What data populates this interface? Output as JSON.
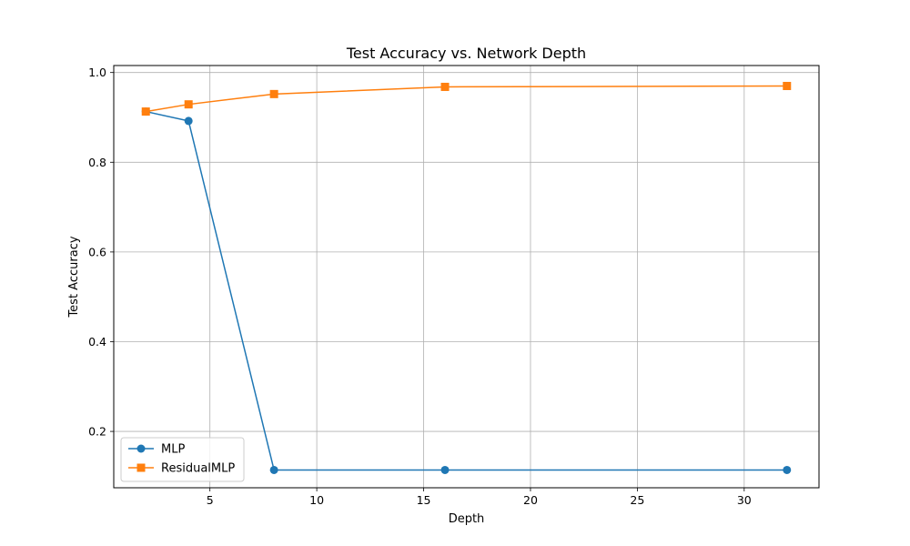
{
  "chart_data": {
    "type": "line",
    "title": "Test Accuracy vs. Network Depth",
    "xlabel": "Depth",
    "ylabel": "Test Accuracy",
    "x": [
      2,
      4,
      8,
      16,
      32
    ],
    "series": [
      {
        "name": "MLP",
        "values": [
          0.913,
          0.892,
          0.114,
          0.114,
          0.114
        ],
        "color": "#1f77b4",
        "marker": "circle"
      },
      {
        "name": "ResidualMLP",
        "values": [
          0.913,
          0.929,
          0.952,
          0.968,
          0.97
        ],
        "color": "#ff7f0e",
        "marker": "square"
      }
    ],
    "xlim": [
      0.5,
      33.5
    ],
    "ylim": [
      0.0744,
      1.0156
    ],
    "xticks": [
      5,
      10,
      15,
      20,
      25,
      30
    ],
    "yticks": [
      0.2,
      0.4,
      0.6,
      0.8,
      1.0
    ],
    "ytick_labels": [
      "0.2",
      "0.4",
      "0.6",
      "0.8",
      "1.0"
    ],
    "grid": true,
    "legend_position": "lower-left"
  }
}
